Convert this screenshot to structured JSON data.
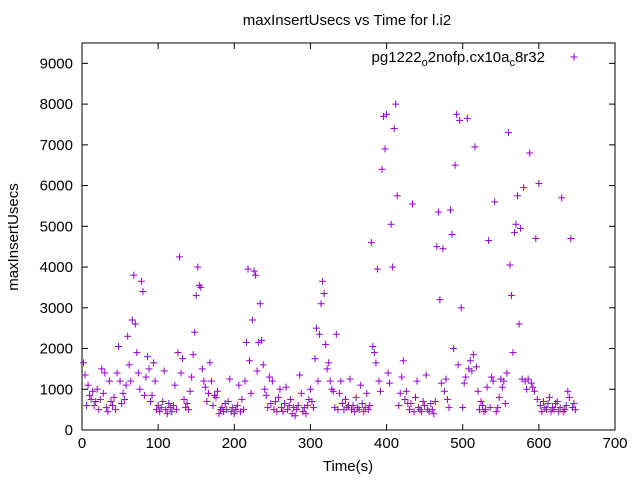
{
  "chart_data": {
    "type": "scatter",
    "title": "maxInsertUsecs vs Time for l.i2",
    "xlabel": "Time(s)",
    "ylabel": "maxInsertUsecs",
    "xlim": [
      0,
      700
    ],
    "ylim": [
      0,
      9500
    ],
    "x_ticks": [
      "0",
      "100",
      "200",
      "300",
      "400",
      "500",
      "600",
      "700"
    ],
    "y_ticks": [
      "0",
      "1000",
      "2000",
      "3000",
      "4000",
      "5000",
      "6000",
      "7000",
      "8000",
      "9000"
    ],
    "grid": false,
    "legend_position": "top-right",
    "legend_label": {
      "base1": "pg1222",
      "sub1": "o",
      "mid": "2nofp.cx10a",
      "sub2": "c",
      "tail": "8r32"
    },
    "series": [
      {
        "color": "#9400d3",
        "marker": "plus",
        "points": [
          [
            2,
            1650
          ],
          [
            4,
            1350
          ],
          [
            6,
            600
          ],
          [
            8,
            1100
          ],
          [
            10,
            850
          ],
          [
            12,
            750
          ],
          [
            14,
            950
          ],
          [
            16,
            600
          ],
          [
            18,
            700
          ],
          [
            20,
            1000
          ],
          [
            22,
            500
          ],
          [
            24,
            750
          ],
          [
            26,
            1500
          ],
          [
            28,
            900
          ],
          [
            30,
            1400
          ],
          [
            32,
            550
          ],
          [
            34,
            450
          ],
          [
            36,
            1200
          ],
          [
            38,
            700
          ],
          [
            40,
            600
          ],
          [
            42,
            800
          ],
          [
            44,
            500
          ],
          [
            46,
            1400
          ],
          [
            48,
            2050
          ],
          [
            50,
            1200
          ],
          [
            52,
            650
          ],
          [
            54,
            900
          ],
          [
            56,
            750
          ],
          [
            58,
            1100
          ],
          [
            60,
            2300
          ],
          [
            62,
            1600
          ],
          [
            64,
            1200
          ],
          [
            66,
            2700
          ],
          [
            68,
            3800
          ],
          [
            70,
            2600
          ],
          [
            72,
            1900
          ],
          [
            74,
            1400
          ],
          [
            76,
            1000
          ],
          [
            78,
            3650
          ],
          [
            80,
            3400
          ],
          [
            82,
            850
          ],
          [
            84,
            1300
          ],
          [
            86,
            1800
          ],
          [
            88,
            1500
          ],
          [
            90,
            700
          ],
          [
            92,
            850
          ],
          [
            94,
            1650
          ],
          [
            96,
            1200
          ],
          [
            98,
            500
          ],
          [
            100,
            600
          ],
          [
            102,
            450
          ],
          [
            104,
            550
          ],
          [
            106,
            700
          ],
          [
            108,
            1450
          ],
          [
            110,
            500
          ],
          [
            112,
            400
          ],
          [
            114,
            650
          ],
          [
            116,
            550
          ],
          [
            118,
            450
          ],
          [
            120,
            600
          ],
          [
            122,
            1100
          ],
          [
            124,
            500
          ],
          [
            126,
            1900
          ],
          [
            128,
            4250
          ],
          [
            130,
            1400
          ],
          [
            132,
            1750
          ],
          [
            134,
            750
          ],
          [
            136,
            550
          ],
          [
            138,
            650
          ],
          [
            140,
            500
          ],
          [
            142,
            950
          ],
          [
            144,
            1300
          ],
          [
            146,
            1850
          ],
          [
            148,
            2400
          ],
          [
            150,
            3300
          ],
          [
            152,
            4000
          ],
          [
            154,
            3550
          ],
          [
            156,
            3500
          ],
          [
            158,
            1500
          ],
          [
            160,
            1200
          ],
          [
            162,
            1050
          ],
          [
            164,
            700
          ],
          [
            166,
            900
          ],
          [
            168,
            1650
          ],
          [
            170,
            1200
          ],
          [
            172,
            600
          ],
          [
            174,
            850
          ],
          [
            176,
            800
          ],
          [
            178,
            950
          ],
          [
            180,
            400
          ],
          [
            182,
            500
          ],
          [
            184,
            550
          ],
          [
            186,
            450
          ],
          [
            188,
            650
          ],
          [
            190,
            500
          ],
          [
            192,
            700
          ],
          [
            194,
            1250
          ],
          [
            196,
            450
          ],
          [
            198,
            550
          ],
          [
            200,
            400
          ],
          [
            202,
            500
          ],
          [
            204,
            600
          ],
          [
            206,
            1100
          ],
          [
            208,
            450
          ],
          [
            210,
            750
          ],
          [
            212,
            500
          ],
          [
            214,
            1200
          ],
          [
            216,
            2150
          ],
          [
            218,
            3950
          ],
          [
            220,
            1700
          ],
          [
            222,
            900
          ],
          [
            224,
            2700
          ],
          [
            226,
            3900
          ],
          [
            228,
            3800
          ],
          [
            230,
            1450
          ],
          [
            232,
            2150
          ],
          [
            234,
            3100
          ],
          [
            236,
            2200
          ],
          [
            238,
            1600
          ],
          [
            240,
            1000
          ],
          [
            242,
            850
          ],
          [
            244,
            550
          ],
          [
            246,
            1300
          ],
          [
            248,
            650
          ],
          [
            250,
            1200
          ],
          [
            252,
            500
          ],
          [
            254,
            700
          ],
          [
            256,
            450
          ],
          [
            258,
            800
          ],
          [
            260,
            1000
          ],
          [
            262,
            550
          ],
          [
            264,
            450
          ],
          [
            266,
            650
          ],
          [
            268,
            1050
          ],
          [
            270,
            500
          ],
          [
            272,
            600
          ],
          [
            274,
            750
          ],
          [
            276,
            400
          ],
          [
            278,
            550
          ],
          [
            280,
            350
          ],
          [
            282,
            500
          ],
          [
            284,
            600
          ],
          [
            286,
            1350
          ],
          [
            288,
            900
          ],
          [
            290,
            450
          ],
          [
            292,
            550
          ],
          [
            294,
            400
          ],
          [
            296,
            600
          ],
          [
            298,
            750
          ],
          [
            300,
            1000
          ],
          [
            302,
            700
          ],
          [
            304,
            550
          ],
          [
            306,
            1750
          ],
          [
            308,
            2500
          ],
          [
            310,
            1200
          ],
          [
            312,
            2350
          ],
          [
            314,
            3100
          ],
          [
            316,
            3650
          ],
          [
            318,
            3350
          ],
          [
            320,
            2100
          ],
          [
            322,
            1500
          ],
          [
            324,
            1650
          ],
          [
            326,
            1200
          ],
          [
            328,
            1000
          ],
          [
            330,
            950
          ],
          [
            332,
            550
          ],
          [
            334,
            2350
          ],
          [
            336,
            500
          ],
          [
            338,
            900
          ],
          [
            340,
            1200
          ],
          [
            342,
            650
          ],
          [
            344,
            500
          ],
          [
            346,
            750
          ],
          [
            348,
            550
          ],
          [
            350,
            600
          ],
          [
            352,
            1250
          ],
          [
            354,
            500
          ],
          [
            356,
            600
          ],
          [
            358,
            450
          ],
          [
            360,
            800
          ],
          [
            362,
            550
          ],
          [
            364,
            500
          ],
          [
            366,
            1100
          ],
          [
            368,
            650
          ],
          [
            370,
            450
          ],
          [
            372,
            550
          ],
          [
            374,
            900
          ],
          [
            376,
            500
          ],
          [
            378,
            600
          ],
          [
            380,
            4600
          ],
          [
            382,
            2050
          ],
          [
            384,
            1900
          ],
          [
            386,
            1650
          ],
          [
            388,
            3950
          ],
          [
            390,
            1200
          ],
          [
            392,
            950
          ],
          [
            394,
            6400
          ],
          [
            396,
            7700
          ],
          [
            398,
            6900
          ],
          [
            400,
            7750
          ],
          [
            402,
            1400
          ],
          [
            404,
            1150
          ],
          [
            406,
            5050
          ],
          [
            408,
            4000
          ],
          [
            410,
            7400
          ],
          [
            412,
            8000
          ],
          [
            414,
            5750
          ],
          [
            416,
            600
          ],
          [
            418,
            900
          ],
          [
            420,
            1300
          ],
          [
            422,
            1700
          ],
          [
            424,
            750
          ],
          [
            426,
            950
          ],
          [
            428,
            650
          ],
          [
            430,
            500
          ],
          [
            432,
            650
          ],
          [
            434,
            5550
          ],
          [
            436,
            450
          ],
          [
            438,
            800
          ],
          [
            440,
            1200
          ],
          [
            442,
            550
          ],
          [
            444,
            500
          ],
          [
            446,
            450
          ],
          [
            448,
            700
          ],
          [
            450,
            600
          ],
          [
            452,
            1350
          ],
          [
            454,
            500
          ],
          [
            456,
            450
          ],
          [
            458,
            650
          ],
          [
            460,
            500
          ],
          [
            462,
            400
          ],
          [
            464,
            700
          ],
          [
            466,
            4500
          ],
          [
            468,
            5350
          ],
          [
            470,
            3200
          ],
          [
            472,
            1150
          ],
          [
            474,
            4450
          ],
          [
            476,
            950
          ],
          [
            478,
            1250
          ],
          [
            480,
            750
          ],
          [
            482,
            550
          ],
          [
            484,
            5400
          ],
          [
            486,
            4800
          ],
          [
            488,
            2000
          ],
          [
            490,
            6500
          ],
          [
            492,
            7750
          ],
          [
            494,
            1600
          ],
          [
            496,
            7600
          ],
          [
            498,
            3000
          ],
          [
            500,
            550
          ],
          [
            502,
            1150
          ],
          [
            504,
            1300
          ],
          [
            506,
            7650
          ],
          [
            508,
            1500
          ],
          [
            510,
            1700
          ],
          [
            512,
            1450
          ],
          [
            514,
            1850
          ],
          [
            516,
            6950
          ],
          [
            518,
            1550
          ],
          [
            520,
            950
          ],
          [
            522,
            500
          ],
          [
            524,
            700
          ],
          [
            526,
            600
          ],
          [
            528,
            450
          ],
          [
            530,
            500
          ],
          [
            532,
            1050
          ],
          [
            534,
            4650
          ],
          [
            536,
            550
          ],
          [
            538,
            1300
          ],
          [
            540,
            1200
          ],
          [
            542,
            5600
          ],
          [
            544,
            450
          ],
          [
            546,
            550
          ],
          [
            548,
            800
          ],
          [
            550,
            1250
          ],
          [
            552,
            1050
          ],
          [
            554,
            1200
          ],
          [
            556,
            650
          ],
          [
            558,
            1400
          ],
          [
            560,
            7300
          ],
          [
            562,
            4050
          ],
          [
            564,
            3300
          ],
          [
            566,
            1900
          ],
          [
            568,
            4850
          ],
          [
            570,
            5050
          ],
          [
            572,
            5750
          ],
          [
            574,
            2600
          ],
          [
            576,
            4950
          ],
          [
            578,
            1250
          ],
          [
            580,
            5950
          ],
          [
            582,
            1200
          ],
          [
            584,
            1000
          ],
          [
            586,
            1250
          ],
          [
            588,
            6800
          ],
          [
            590,
            1150
          ],
          [
            592,
            1050
          ],
          [
            594,
            950
          ],
          [
            596,
            4700
          ],
          [
            598,
            750
          ],
          [
            600,
            6050
          ],
          [
            602,
            600
          ],
          [
            604,
            450
          ],
          [
            606,
            700
          ],
          [
            608,
            550
          ],
          [
            610,
            500
          ],
          [
            612,
            650
          ],
          [
            614,
            800
          ],
          [
            616,
            450
          ],
          [
            618,
            550
          ],
          [
            620,
            500
          ],
          [
            622,
            650
          ],
          [
            624,
            700
          ],
          [
            626,
            450
          ],
          [
            628,
            550
          ],
          [
            630,
            5700
          ],
          [
            632,
            450
          ],
          [
            634,
            500
          ],
          [
            636,
            600
          ],
          [
            638,
            950
          ],
          [
            640,
            800
          ],
          [
            642,
            4700
          ],
          [
            644,
            550
          ],
          [
            646,
            650
          ],
          [
            648,
            500
          ]
        ]
      }
    ]
  }
}
